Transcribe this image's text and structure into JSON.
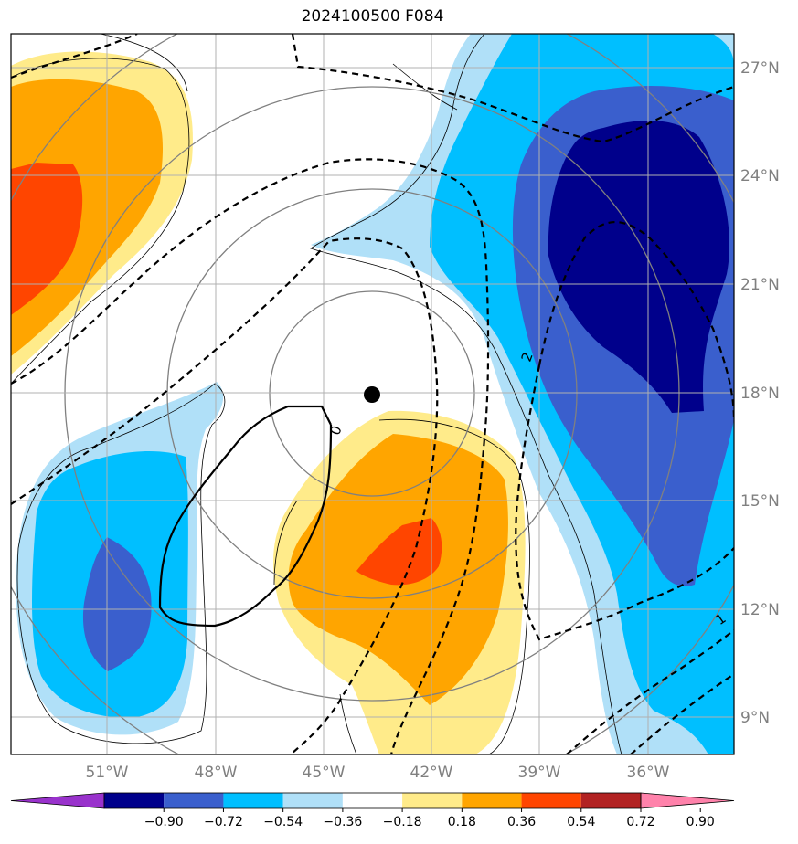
{
  "title": "2024100500 F084",
  "lon_labels": [
    "51°W",
    "48°W",
    "45°W",
    "42°W",
    "39°W",
    "36°W"
  ],
  "lat_labels": [
    "27°N",
    "24°N",
    "21°N",
    "18°N",
    "15°N",
    "12°N",
    "9°N"
  ],
  "colorbar": {
    "labels": [
      "−0.90",
      "−0.72",
      "−0.54",
      "−0.36",
      "−0.18",
      "0.18",
      "0.36",
      "0.54",
      "0.72",
      "0.90"
    ],
    "colors": [
      "#9932cc",
      "#00008b",
      "#3a5fcd",
      "#00bfff",
      "#b0e0f8",
      "#ffffff",
      "#ffeb8a",
      "#ffa500",
      "#ff4500",
      "#b22222",
      "#ff82ab"
    ]
  },
  "contour_labels": {
    "zero": "0",
    "two": "2",
    "one": "1"
  },
  "storm_center_marker": "black-dot"
}
